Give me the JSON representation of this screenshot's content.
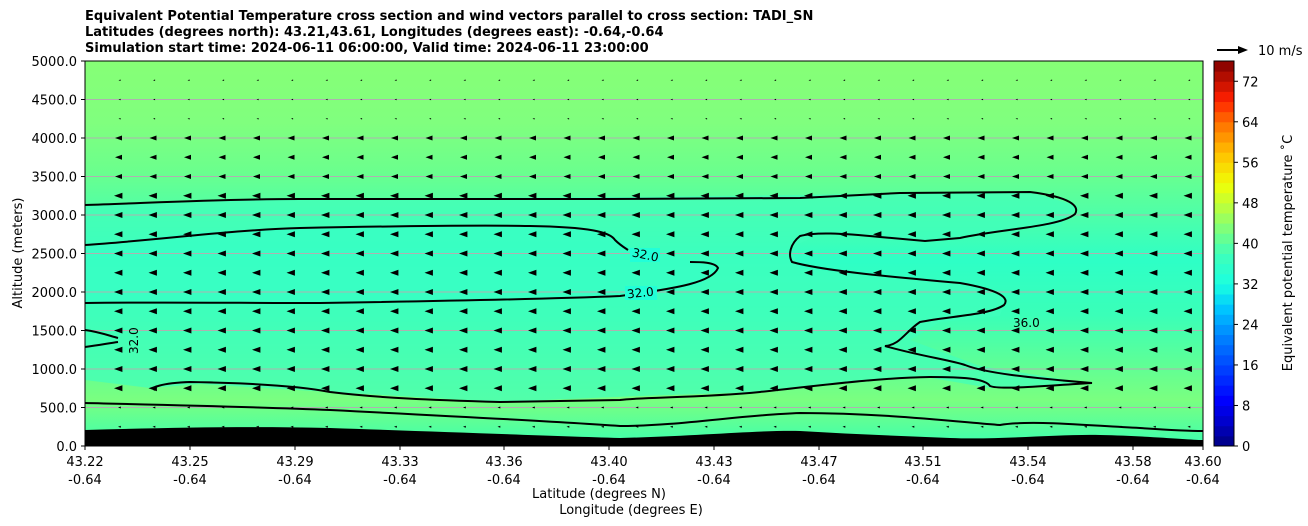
{
  "chart_data": {
    "type": "heatmap",
    "title_lines": [
      "Equivalent Potential Temperature cross section and wind vectors parallel to cross section: TADI_SN",
      "Latitudes (degrees north): 43.21,43.61, Longitudes (degrees east): -0.64,-0.64",
      "Simulation start time: 2024-06-11 06:00:00, Valid time: 2024-06-11 23:00:00"
    ],
    "xlabel": "Latitude (degrees N)",
    "xlabel2": "Longitude (degrees E)",
    "ylabel": "Altitude (meters)",
    "x_ticks": [
      {
        "lat": "43.22",
        "lon": "-0.64"
      },
      {
        "lat": "43.25",
        "lon": "-0.64"
      },
      {
        "lat": "43.29",
        "lon": "-0.64"
      },
      {
        "lat": "43.33",
        "lon": "-0.64"
      },
      {
        "lat": "43.36",
        "lon": "-0.64"
      },
      {
        "lat": "43.40",
        "lon": "-0.64"
      },
      {
        "lat": "43.43",
        "lon": "-0.64"
      },
      {
        "lat": "43.47",
        "lon": "-0.64"
      },
      {
        "lat": "43.51",
        "lon": "-0.64"
      },
      {
        "lat": "43.54",
        "lon": "-0.64"
      },
      {
        "lat": "43.58",
        "lon": "-0.64"
      },
      {
        "lat": "43.60",
        "lon": "-0.64"
      }
    ],
    "y_ticks": [
      "0.0",
      "500.0",
      "1000.0",
      "1500.0",
      "2000.0",
      "2500.0",
      "3000.0",
      "3500.0",
      "4000.0",
      "4500.0",
      "5000.0"
    ],
    "ylim": [
      0,
      5000
    ],
    "colorbar": {
      "label": "Equivalent potential temperature ˚C",
      "ticks": [
        "0",
        "8",
        "16",
        "24",
        "32",
        "40",
        "48",
        "56",
        "64",
        "72"
      ],
      "range": [
        0,
        76
      ]
    },
    "contour_labels": [
      "32.0",
      "32.0",
      "32.0",
      "36.0"
    ],
    "quiver_key": "10 m/s",
    "grid": "horizontal"
  }
}
